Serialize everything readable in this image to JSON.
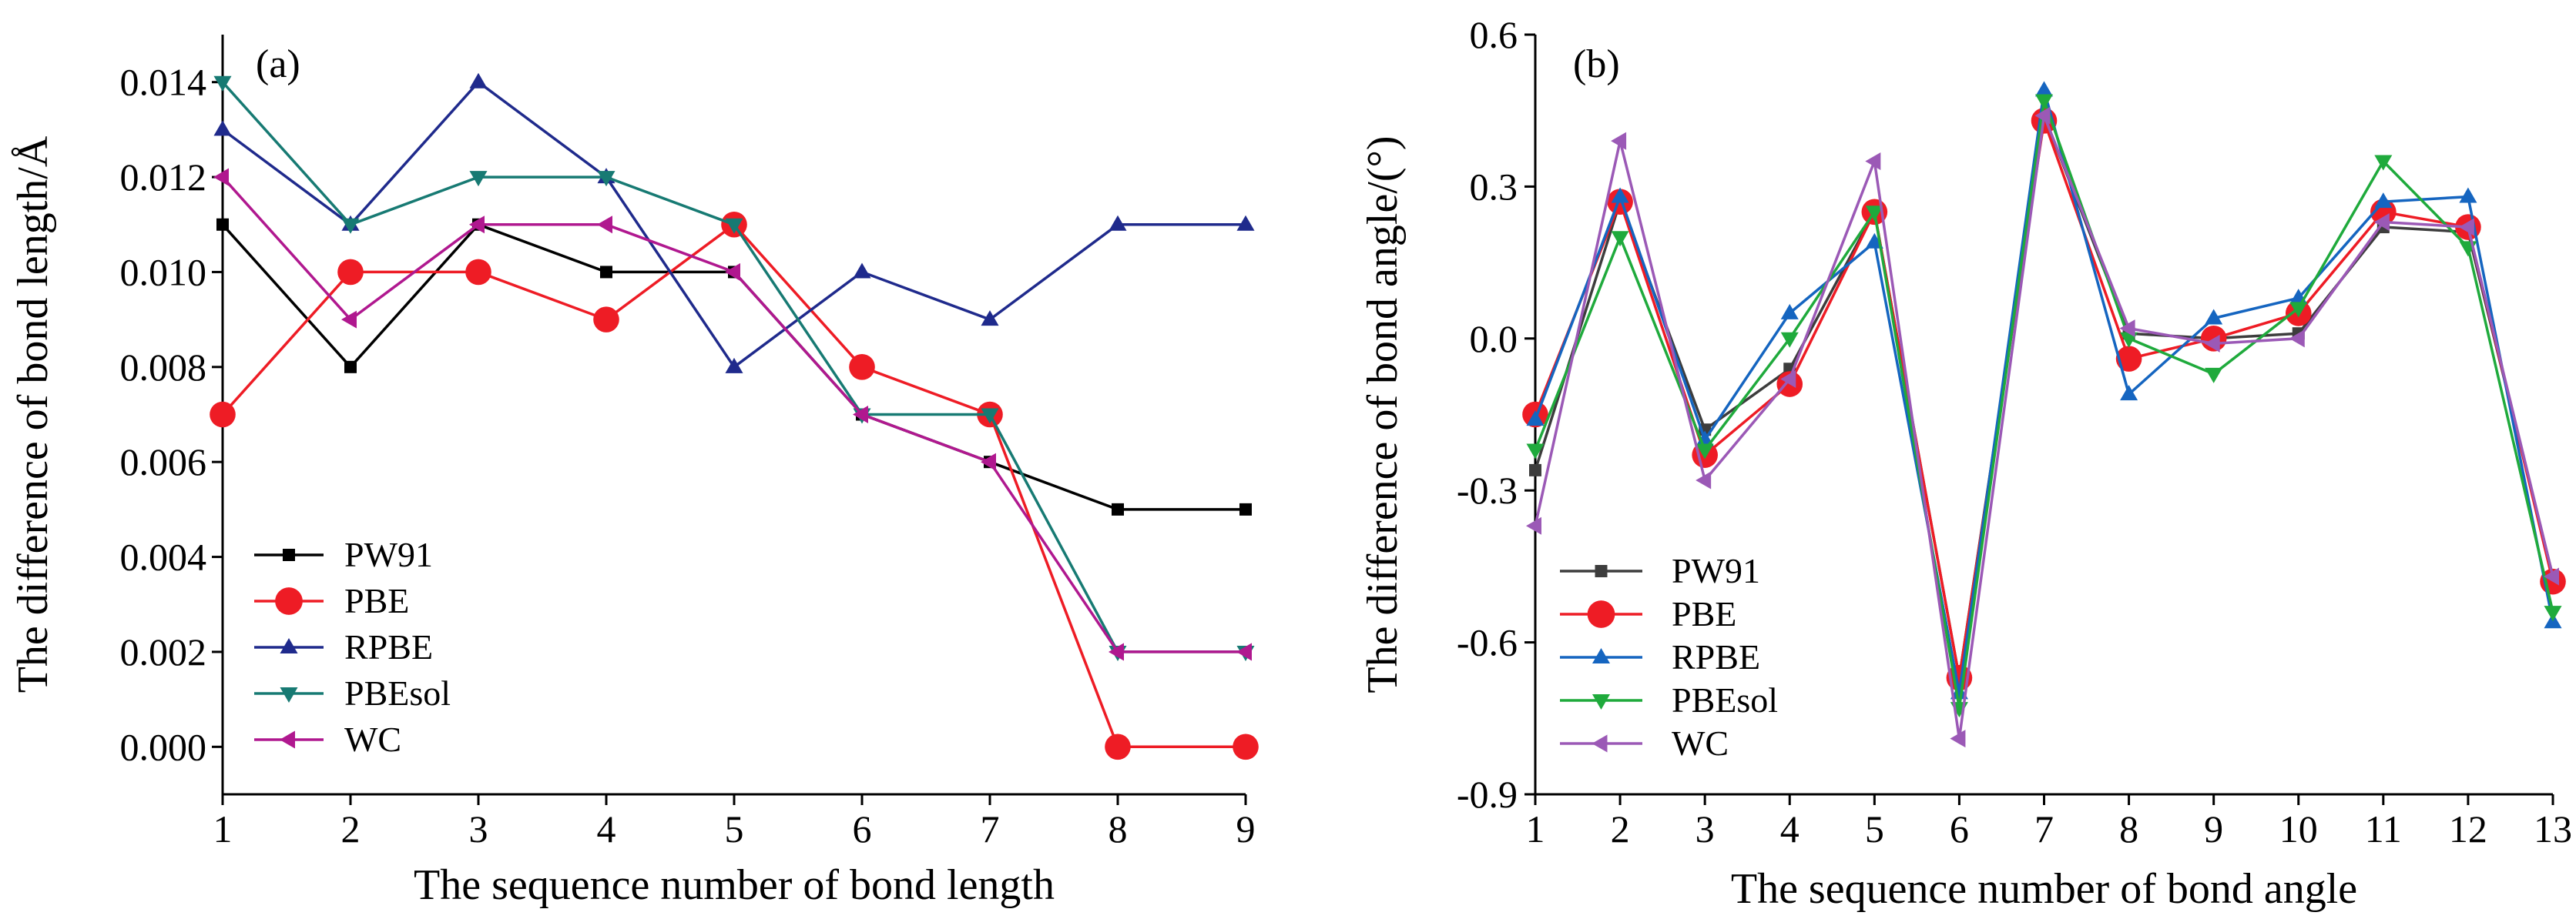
{
  "chart_data": [
    {
      "type": "line",
      "panel_label": "(a)",
      "xlabel": "The sequence number of bond length",
      "ylabel": "The difference of bond length/Å",
      "x": [
        1,
        2,
        3,
        4,
        5,
        6,
        7,
        8,
        9
      ],
      "xlim": [
        1,
        9
      ],
      "ylim": [
        -0.001,
        0.015
      ],
      "xticks": [
        1,
        2,
        3,
        4,
        5,
        6,
        7,
        8,
        9
      ],
      "yticks": [
        0.0,
        0.002,
        0.004,
        0.006,
        0.008,
        0.01,
        0.012,
        0.014
      ],
      "ytick_labels": [
        "0.000",
        "0.002",
        "0.004",
        "0.006",
        "0.008",
        "0.010",
        "0.012",
        "0.014"
      ],
      "grid": false,
      "legend_position": "bottom-left",
      "series": [
        {
          "name": "PW91",
          "color": "#000000",
          "marker": "square",
          "values": [
            0.011,
            0.008,
            0.011,
            0.01,
            0.01,
            0.007,
            0.006,
            0.005,
            0.005
          ]
        },
        {
          "name": "PBE",
          "color": "#ee1c25",
          "marker": "circle",
          "values": [
            0.007,
            0.01,
            0.01,
            0.009,
            0.011,
            0.008,
            0.007,
            0.0,
            0.0
          ]
        },
        {
          "name": "RPBE",
          "color": "#1f2a8c",
          "marker": "triangle-up",
          "values": [
            0.013,
            0.011,
            0.014,
            0.012,
            0.008,
            0.01,
            0.009,
            0.011,
            0.011
          ]
        },
        {
          "name": "PBEsol",
          "color": "#177a73",
          "marker": "triangle-down",
          "values": [
            0.014,
            0.011,
            0.012,
            0.012,
            0.011,
            0.007,
            0.007,
            0.002,
            0.002
          ]
        },
        {
          "name": "WC",
          "color": "#b0188f",
          "marker": "triangle-left",
          "values": [
            0.012,
            0.009,
            0.011,
            0.011,
            0.01,
            0.007,
            0.006,
            0.002,
            0.002
          ]
        }
      ]
    },
    {
      "type": "line",
      "panel_label": "(b)",
      "xlabel": "The sequence number of bond angle",
      "ylabel": "The difference of bond angle/(°)",
      "x": [
        1,
        2,
        3,
        4,
        5,
        6,
        7,
        8,
        9,
        10,
        11,
        12,
        13
      ],
      "xlim": [
        1,
        13
      ],
      "ylim": [
        -0.9,
        0.6
      ],
      "xticks": [
        1,
        2,
        3,
        4,
        5,
        6,
        7,
        8,
        9,
        10,
        11,
        12,
        13
      ],
      "yticks": [
        -0.9,
        -0.6,
        -0.3,
        0.0,
        0.3,
        0.6
      ],
      "ytick_labels": [
        "-0.9",
        "-0.6",
        "-0.3",
        "0.0",
        "0.3",
        "0.6"
      ],
      "grid": false,
      "legend_position": "bottom-left",
      "series": [
        {
          "name": "PW91",
          "color": "#3d3d3d",
          "marker": "square",
          "values": [
            -0.26,
            0.27,
            -0.18,
            -0.06,
            0.25,
            -0.67,
            0.44,
            0.01,
            0.0,
            0.01,
            0.22,
            0.21,
            -0.47
          ]
        },
        {
          "name": "PBE",
          "color": "#ee1c25",
          "marker": "circle",
          "values": [
            -0.15,
            0.27,
            -0.23,
            -0.09,
            0.25,
            -0.67,
            0.43,
            -0.04,
            0.0,
            0.05,
            0.25,
            0.22,
            -0.48
          ]
        },
        {
          "name": "RPBE",
          "color": "#1565c0",
          "marker": "triangle-up",
          "values": [
            -0.16,
            0.28,
            -0.2,
            0.05,
            0.19,
            -0.7,
            0.49,
            -0.11,
            0.04,
            0.08,
            0.27,
            0.28,
            -0.56
          ]
        },
        {
          "name": "PBEsol",
          "color": "#1faa3c",
          "marker": "triangle-down",
          "values": [
            -0.22,
            0.2,
            -0.22,
            0.0,
            0.25,
            -0.73,
            0.47,
            0.0,
            -0.07,
            0.06,
            0.35,
            0.18,
            -0.54
          ]
        },
        {
          "name": "WC",
          "color": "#9b59b6",
          "marker": "triangle-left",
          "values": [
            -0.37,
            0.39,
            -0.28,
            -0.08,
            0.35,
            -0.79,
            0.44,
            0.02,
            -0.01,
            0.0,
            0.23,
            0.22,
            -0.47
          ]
        }
      ]
    }
  ]
}
